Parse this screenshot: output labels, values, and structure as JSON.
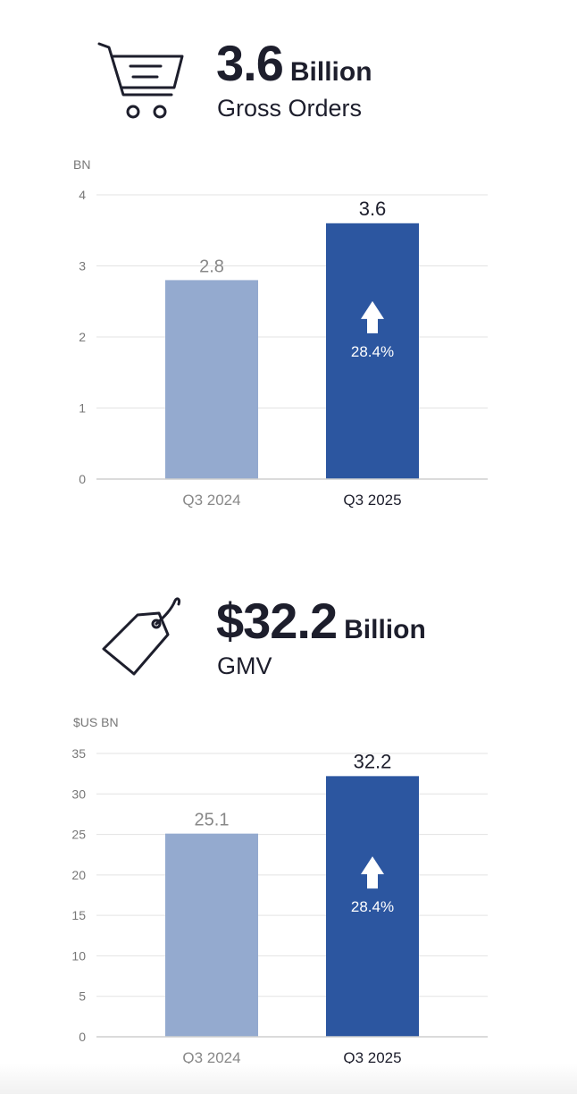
{
  "palette": {
    "bar_prior": "#94aacf",
    "bar_current": "#2c56a0",
    "label_prior": "#888888",
    "label_current": "#1d1e2c",
    "axis_text": "#777777",
    "grid": "#e3e3e3",
    "arrow_text": "#ffffff"
  },
  "orders": {
    "icon": "shopping-cart-icon",
    "value": "3.6",
    "unit": "Billion",
    "label": "Gross Orders"
  },
  "gmv": {
    "icon": "price-tag-icon",
    "value": "$32.2",
    "unit": "Billion",
    "label": "GMV"
  },
  "chart_data": [
    {
      "type": "bar",
      "ylabel": "BN",
      "categories": [
        "Q3 2024",
        "Q3 2025"
      ],
      "values": [
        2.8,
        3.6
      ],
      "value_labels": [
        "2.8",
        "3.6"
      ],
      "ylim": [
        0,
        4
      ],
      "yticks": [
        0,
        1,
        2,
        3,
        4
      ],
      "grid": true,
      "growth_annotation": "28.4%"
    },
    {
      "type": "bar",
      "ylabel": "$US BN",
      "categories": [
        "Q3 2024",
        "Q3 2025"
      ],
      "values": [
        25.1,
        32.2
      ],
      "value_labels": [
        "25.1",
        "32.2"
      ],
      "ylim": [
        0,
        35
      ],
      "yticks": [
        0,
        5,
        10,
        15,
        20,
        25,
        30,
        35
      ],
      "grid": true,
      "growth_annotation": "28.4%"
    }
  ]
}
